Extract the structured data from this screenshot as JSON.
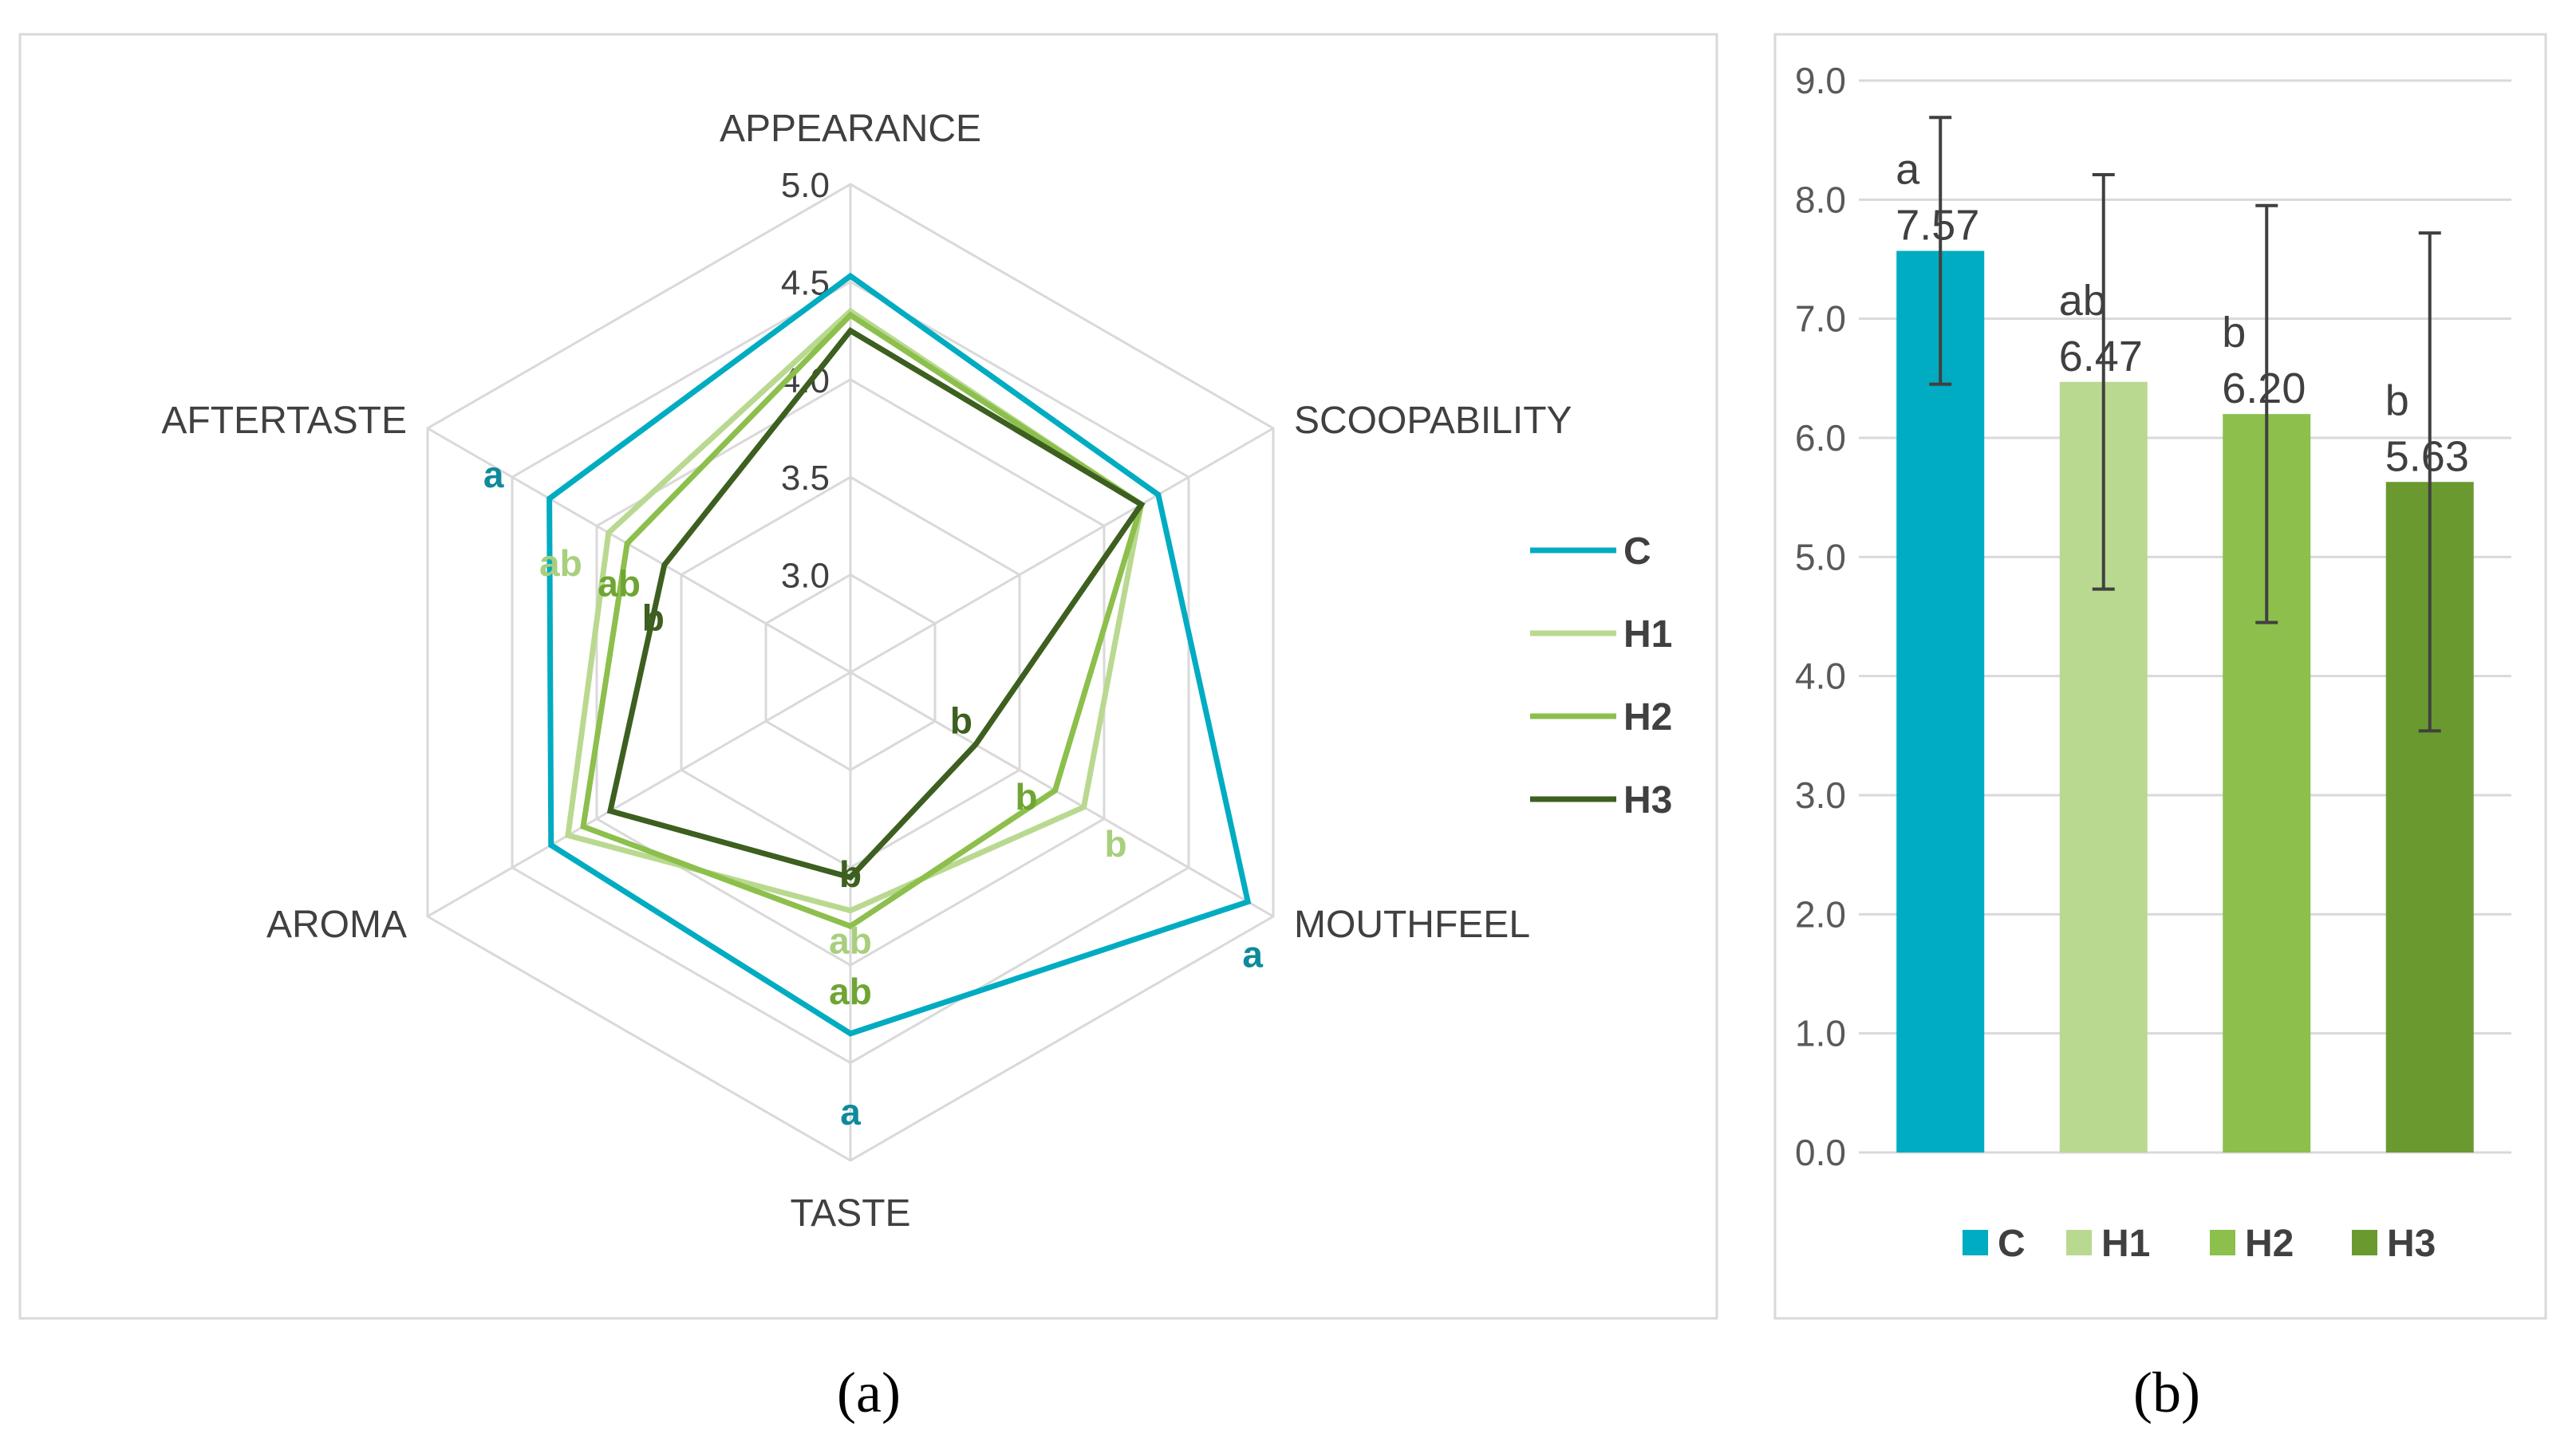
{
  "colors": {
    "C": "#00acc1",
    "H1": "#b9d990",
    "H2": "#8cbf4c",
    "H3": "#3d5f1f",
    "H3_bar": "#6a9a2f",
    "C_letter": "#0f8a9c",
    "H1_letter": "#a8cf7c",
    "H2_letter": "#6fa533",
    "H3_letter": "#3d5f1f"
  },
  "captions": {
    "a": "(a)",
    "b": "(b)"
  },
  "chart_data": [
    {
      "type": "radar",
      "title": "",
      "axes": [
        "APPEARANCE",
        "SCOOPABILITY",
        "MOUTHFEEL",
        "TASTE",
        "AROMA",
        "AFTERTASTE"
      ],
      "r_range": [
        2.5,
        5.0
      ],
      "ticks": [
        3.0,
        3.5,
        4.0,
        4.5,
        5.0
      ],
      "tick_labels": [
        "3.0",
        "3.5",
        "4.0",
        "4.5",
        "5.0"
      ],
      "series": [
        {
          "name": "C",
          "values": [
            4.53,
            4.32,
            4.85,
            4.35,
            4.27,
            4.28
          ]
        },
        {
          "name": "H1",
          "values": [
            4.35,
            4.22,
            3.88,
            3.72,
            4.17,
            3.93
          ]
        },
        {
          "name": "H2",
          "values": [
            4.33,
            4.22,
            3.71,
            3.8,
            4.08,
            3.82
          ]
        },
        {
          "name": "H3",
          "values": [
            4.25,
            4.22,
            3.24,
            3.55,
            3.92,
            3.6
          ]
        }
      ],
      "letters": [
        {
          "series": "C",
          "axis": "AFTERTASTE",
          "text": "a"
        },
        {
          "series": "H1",
          "axis": "AFTERTASTE",
          "text": "ab"
        },
        {
          "series": "H2",
          "axis": "AFTERTASTE",
          "text": "ab"
        },
        {
          "series": "H3",
          "axis": "AFTERTASTE",
          "text": "b"
        },
        {
          "series": "H3",
          "axis": "MOUTHFEEL",
          "text": "b"
        },
        {
          "series": "H2",
          "axis": "MOUTHFEEL",
          "text": "b"
        },
        {
          "series": "H1",
          "axis": "MOUTHFEEL",
          "text": "b"
        },
        {
          "series": "C",
          "axis": "MOUTHFEEL",
          "text": "a"
        },
        {
          "series": "H3",
          "axis": "TASTE",
          "text": "b"
        },
        {
          "series": "H1",
          "axis": "TASTE",
          "text": "ab"
        },
        {
          "series": "H2",
          "axis": "TASTE",
          "text": "ab"
        },
        {
          "series": "C",
          "axis": "TASTE",
          "text": "a"
        }
      ],
      "legend": {
        "placement": "right",
        "entries": [
          "C",
          "H1",
          "H2",
          "H3"
        ]
      }
    },
    {
      "type": "bar",
      "title": "",
      "categories": [
        "C",
        "H1",
        "H2",
        "H3"
      ],
      "values": [
        7.57,
        6.47,
        6.2,
        5.63
      ],
      "value_labels": [
        "7.57",
        "6.47",
        "6.20",
        "5.63"
      ],
      "errors": [
        1.12,
        1.74,
        1.75,
        2.09
      ],
      "letters": [
        "a",
        "ab",
        "b",
        "b"
      ],
      "ylim": [
        0.0,
        9.0
      ],
      "yticks": [
        "0.0",
        "1.0",
        "2.0",
        "3.0",
        "4.0",
        "5.0",
        "6.0",
        "7.0",
        "8.0",
        "9.0"
      ],
      "grid": true,
      "legend": {
        "placement": "bottom",
        "entries": [
          "C",
          "H1",
          "H2",
          "H3"
        ]
      }
    }
  ]
}
